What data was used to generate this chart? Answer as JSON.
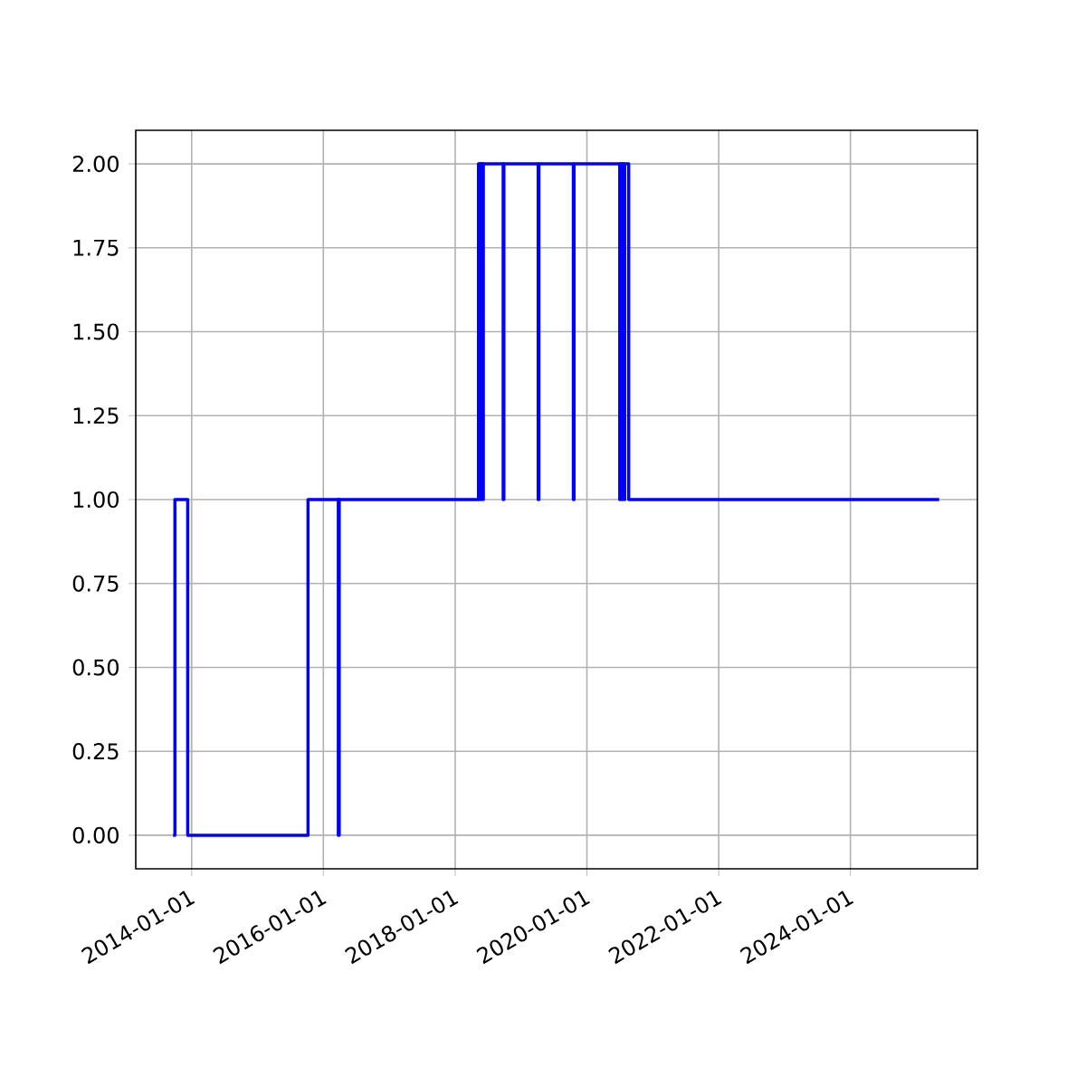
{
  "chart_data": {
    "type": "step",
    "color": "#0000ff",
    "grid": true,
    "x": [
      "2013-09-20",
      "2013-09-30",
      "2013-12-10",
      "2015-10-08",
      "2016-03-24",
      "2016-03-26",
      "2016-03-27",
      "2016-03-29",
      "2018-05-10",
      "2018-05-14",
      "2018-05-17",
      "2018-05-24",
      "2018-05-27",
      "2018-06-03",
      "2018-06-06",
      "2018-09-24",
      "2018-09-28",
      "2019-04-06",
      "2019-04-10",
      "2019-10-18",
      "2019-10-22",
      "2020-07-01",
      "2020-07-05",
      "2020-07-12",
      "2020-07-16",
      "2020-07-25",
      "2020-07-29",
      "2020-08-20",
      "2025-05-07"
    ],
    "values": [
      0,
      1,
      0,
      1,
      0,
      1,
      0,
      1,
      2,
      1,
      2,
      1,
      2,
      1,
      2,
      1,
      2,
      1,
      2,
      1,
      2,
      1,
      2,
      1,
      2,
      1,
      2,
      1,
      1
    ],
    "xlim": [
      "2013-02-25",
      "2025-12-05"
    ],
    "xticks": [
      "2014-01-01",
      "2016-01-01",
      "2018-01-01",
      "2020-01-01",
      "2022-01-01",
      "2024-01-01"
    ],
    "ylim": [
      -0.1,
      2.1
    ],
    "yticks": [
      {
        "value": 0,
        "label": "0.00"
      },
      {
        "value": 0.25,
        "label": "0.25"
      },
      {
        "value": 0.5,
        "label": "0.50"
      },
      {
        "value": 0.75,
        "label": "0.75"
      },
      {
        "value": 1,
        "label": "1.00"
      },
      {
        "value": 1.25,
        "label": "1.25"
      },
      {
        "value": 1.5,
        "label": "1.50"
      },
      {
        "value": 1.75,
        "label": "1.75"
      },
      {
        "value": 2,
        "label": "2.00"
      }
    ]
  }
}
